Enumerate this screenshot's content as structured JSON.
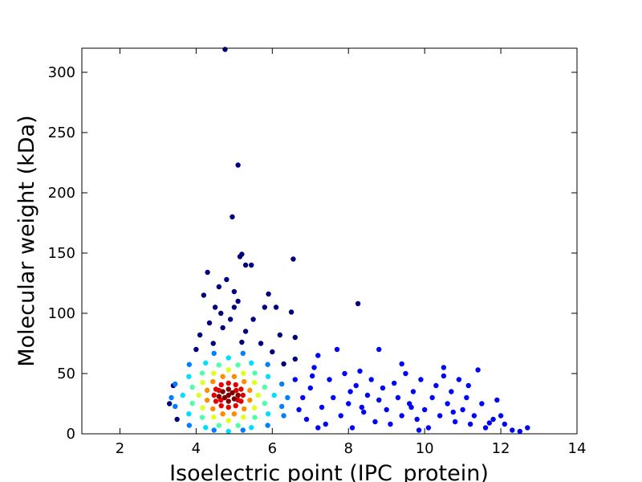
{
  "chart_data": {
    "type": "scatter",
    "xlabel": "Isoelectric point (IPC_protein)",
    "ylabel": "Molecular weight (kDa)",
    "xlim": [
      1,
      14
    ],
    "ylim": [
      0,
      320
    ],
    "xticks": [
      2,
      4,
      6,
      8,
      10,
      12,
      14
    ],
    "yticks": [
      0,
      50,
      100,
      150,
      200,
      250,
      300
    ],
    "series": [
      {
        "color": "#00007f",
        "x": [
          4.76,
          5.1,
          4.95,
          5.15,
          5.2,
          5.45,
          6.55,
          5.3,
          4.3,
          4.8,
          4.6,
          5.0,
          5.9,
          6.5,
          8.25,
          4.2,
          4.5,
          5.0,
          4.9,
          5.5,
          4.7,
          5.3,
          4.1,
          6.2,
          5.7,
          6.6,
          4.35,
          5.1,
          6.1,
          4.0,
          3.4,
          3.3,
          6.0,
          6.3,
          6.6,
          4.45,
          5.2,
          5.8,
          4.65,
          3.5
        ],
        "values": [
          319,
          223,
          180,
          147,
          149,
          140,
          145,
          140,
          134,
          128,
          122,
          118,
          116,
          101,
          108,
          115,
          105,
          105,
          95,
          95,
          88,
          85,
          82,
          82,
          75,
          80,
          92,
          110,
          105,
          70,
          40,
          25,
          68,
          58,
          62,
          75,
          76,
          105,
          100,
          12
        ]
      },
      {
        "color": "#0000ff",
        "x": [
          6.6,
          6.8,
          6.9,
          7.0,
          7.1,
          7.2,
          7.3,
          7.4,
          7.5,
          7.6,
          7.8,
          7.9,
          8.0,
          8.1,
          8.2,
          8.3,
          8.4,
          8.5,
          8.6,
          8.7,
          8.8,
          8.9,
          9.0,
          9.1,
          9.2,
          9.3,
          9.4,
          9.5,
          9.6,
          9.7,
          9.8,
          9.9,
          10.0,
          10.1,
          10.2,
          10.3,
          10.4,
          10.5,
          10.6,
          10.7,
          10.8,
          10.9,
          11.0,
          11.1,
          11.2,
          11.3,
          11.4,
          11.5,
          11.6,
          11.8,
          11.9,
          12.1,
          12.3,
          12.5,
          12.7,
          7.7,
          8.8,
          9.4,
          10.5,
          6.7,
          7.2,
          8.35,
          9.85,
          11.15,
          12.0,
          7.05,
          8.05,
          9.65,
          10.75,
          11.7
        ],
        "values": [
          45,
          30,
          12,
          38,
          55,
          65,
          22,
          8,
          45,
          30,
          15,
          50,
          25,
          5,
          40,
          52,
          18,
          32,
          45,
          10,
          28,
          38,
          20,
          8,
          42,
          30,
          15,
          50,
          25,
          35,
          12,
          45,
          20,
          5,
          30,
          40,
          15,
          55,
          25,
          35,
          10,
          45,
          20,
          30,
          8,
          15,
          53,
          25,
          5,
          12,
          28,
          8,
          3,
          2,
          5,
          70,
          70,
          58,
          48,
          20,
          5,
          22,
          3,
          40,
          15,
          48,
          35,
          22,
          18,
          9
        ]
      },
      {
        "color": "#0080ff",
        "x": [
          6.25,
          5.88,
          5.23,
          4.47,
          3.82,
          3.45,
          3.45,
          3.82,
          4.47,
          5.23,
          5.88,
          6.25,
          6.4,
          6.3,
          3.35
        ],
        "values": [
          41.3,
          57.5,
          66.8,
          66.8,
          57.5,
          41.3,
          22.7,
          7,
          3,
          3,
          7,
          22.7,
          30,
          15,
          30
        ]
      },
      {
        "color": "#00dfff",
        "x": [
          6.05,
          5.89,
          5.45,
          4.85,
          4.25,
          3.81,
          3.65,
          3.81,
          4.25,
          4.85,
          5.45,
          5.89
        ],
        "values": [
          32,
          47.5,
          58.8,
          63,
          58.8,
          47.5,
          32,
          16.5,
          5.2,
          2,
          5.2,
          16.5
        ]
      },
      {
        "color": "#4dffaa",
        "x": [
          5.8,
          5.54,
          5.1,
          4.6,
          4.16,
          3.9,
          3.9,
          4.16,
          4.6,
          5.1,
          5.54,
          5.8
        ],
        "values": [
          38.7,
          50.4,
          57.1,
          57.1,
          50.4,
          38.7,
          25.3,
          13.6,
          6.9,
          6.9,
          13.6,
          25.3
        ]
      },
      {
        "color": "#dfff1f",
        "x": [
          5.63,
          5.53,
          5.24,
          4.85,
          4.46,
          4.17,
          4.07,
          4.17,
          4.46,
          4.85,
          5.24,
          5.53
        ],
        "values": [
          32,
          42.5,
          50.2,
          53,
          50.2,
          42.5,
          32,
          21.5,
          13.8,
          11,
          13.8,
          21.5
        ]
      },
      {
        "color": "#ff8c00",
        "x": [
          5.41,
          5.26,
          5.0,
          4.7,
          4.44,
          4.29,
          4.29,
          4.44,
          4.7,
          5.0,
          5.26,
          5.41
        ],
        "values": [
          36.1,
          43.3,
          47.5,
          47.5,
          43.3,
          36.1,
          27.9,
          20.7,
          16.5,
          16.5,
          20.7,
          27.9
        ]
      },
      {
        "color": "#e50000",
        "x": [
          5.23,
          5.18,
          5.04,
          4.85,
          4.66,
          4.52,
          4.47,
          4.52,
          4.66,
          4.85,
          5.04,
          5.18,
          5.05,
          4.65,
          5.1,
          4.6
        ],
        "values": [
          32,
          37,
          40.7,
          42,
          40.7,
          37,
          32,
          27,
          23.3,
          22,
          23.3,
          27,
          36,
          28,
          28,
          36
        ]
      },
      {
        "color": "#7f0000",
        "x": [
          4.85,
          4.75,
          4.95,
          4.7,
          5.0,
          4.85,
          4.85,
          4.6,
          5.1
        ],
        "values": [
          32,
          30,
          34,
          35,
          29,
          27,
          37,
          31,
          32
        ]
      }
    ]
  }
}
